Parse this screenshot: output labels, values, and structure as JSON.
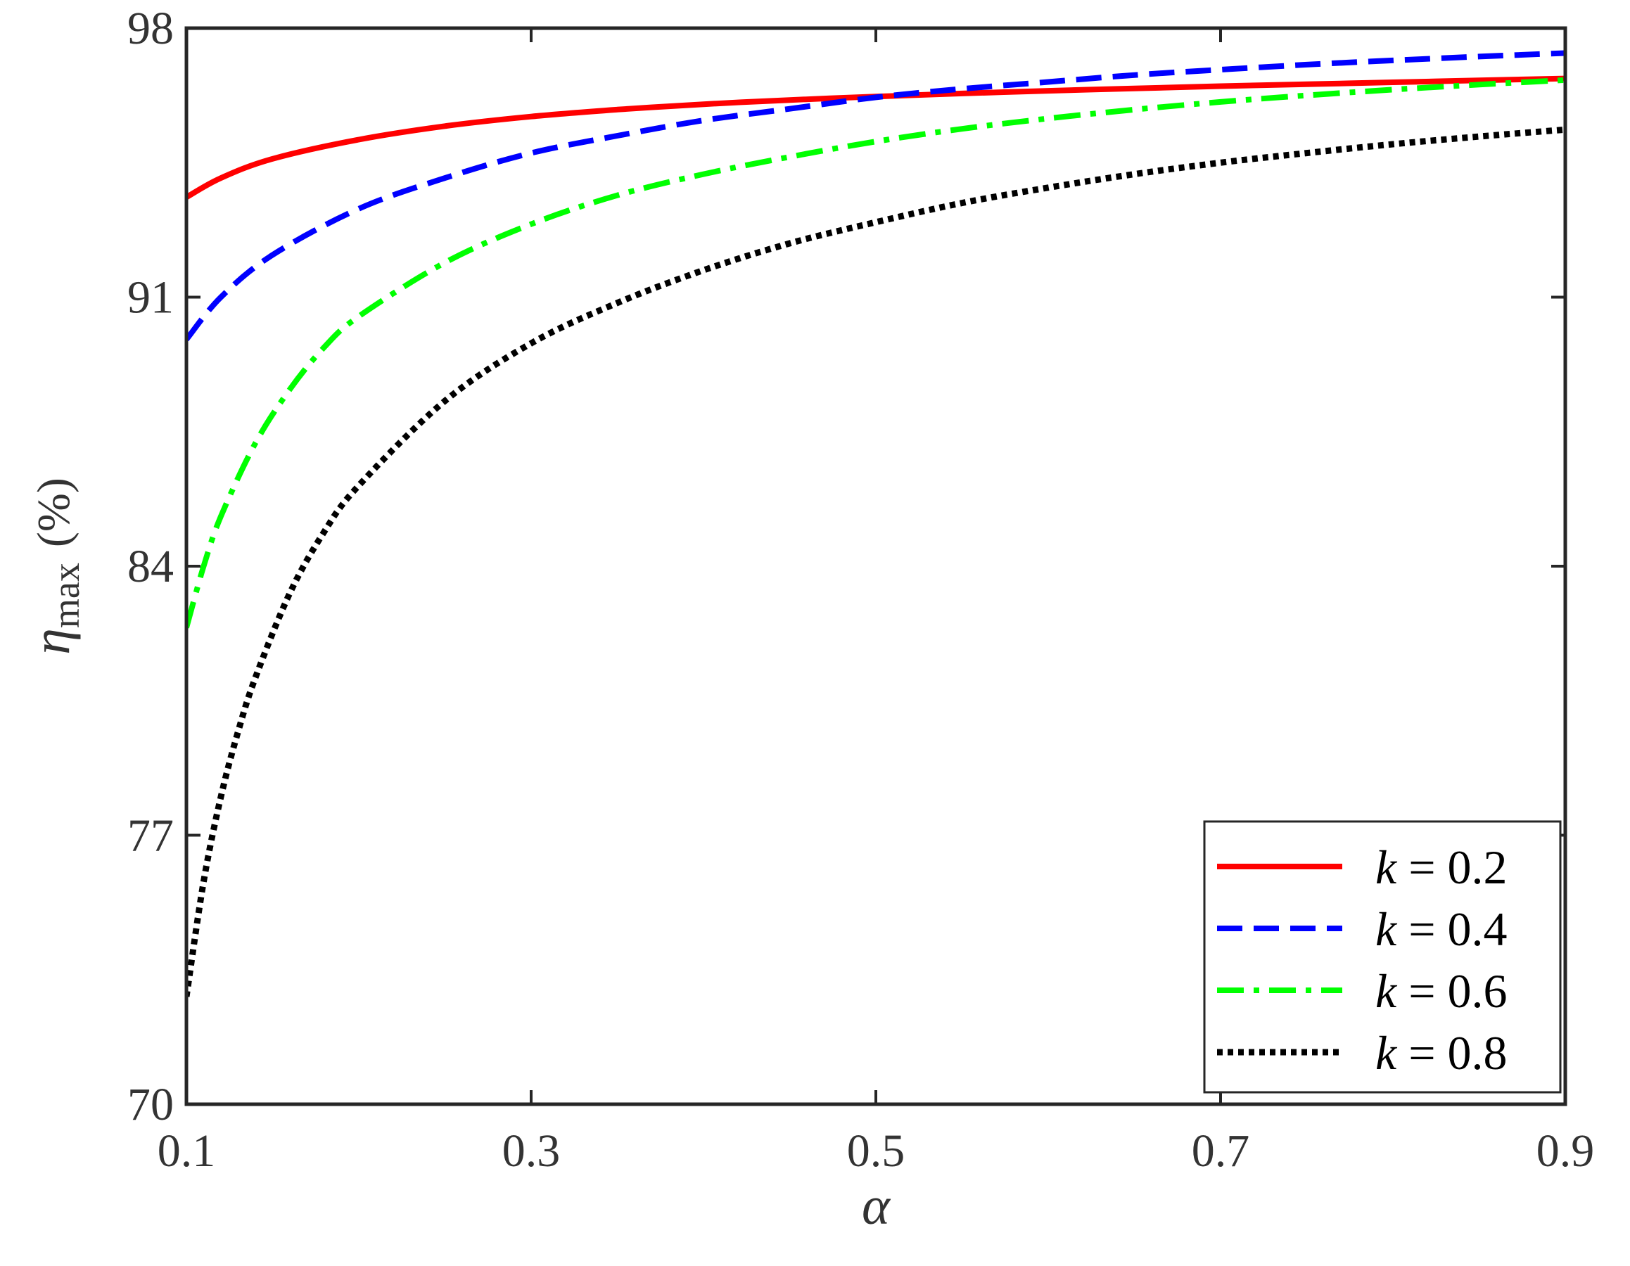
{
  "chart_data": {
    "type": "line",
    "title": "",
    "xlabel": "α",
    "ylabel": {
      "symbol": "η",
      "subscript": "max",
      "unit": "(%)"
    },
    "xlim": [
      0.1,
      0.9
    ],
    "ylim": [
      70,
      98
    ],
    "xticks": [
      0.1,
      0.3,
      0.5,
      0.7,
      0.9
    ],
    "xtick_labels": [
      "0.1",
      "0.3",
      "0.5",
      "0.7",
      "0.9"
    ],
    "yticks": [
      70,
      77,
      84,
      91,
      98
    ],
    "ytick_labels": [
      "70",
      "77",
      "84",
      "91",
      "98"
    ],
    "grid": false,
    "legend_position": "bottom-right",
    "series": [
      {
        "name": "k = 0.2",
        "legend_var": "k",
        "legend_value": "0.2",
        "color": "#ff0000",
        "style": "solid",
        "x": [
          0.1,
          0.12,
          0.15,
          0.2,
          0.25,
          0.3,
          0.35,
          0.4,
          0.45,
          0.5,
          0.55,
          0.6,
          0.65,
          0.7,
          0.75,
          0.8,
          0.85,
          0.9
        ],
        "y": [
          93.6,
          94.1,
          94.6,
          95.1,
          95.45,
          95.7,
          95.88,
          96.02,
          96.13,
          96.22,
          96.3,
          96.37,
          96.43,
          96.49,
          96.54,
          96.59,
          96.64,
          96.69
        ]
      },
      {
        "name": "k = 0.4",
        "legend_var": "k",
        "legend_value": "0.4",
        "color": "#0000ff",
        "style": "dashed",
        "x": [
          0.1,
          0.12,
          0.15,
          0.2,
          0.25,
          0.3,
          0.35,
          0.4,
          0.45,
          0.5,
          0.55,
          0.6,
          0.65,
          0.7,
          0.75,
          0.8,
          0.85,
          0.9
        ],
        "y": [
          89.9,
          91.0,
          92.1,
          93.3,
          94.1,
          94.75,
          95.2,
          95.6,
          95.9,
          96.2,
          96.42,
          96.6,
          96.78,
          96.92,
          97.05,
          97.16,
          97.26,
          97.35
        ]
      },
      {
        "name": "k = 0.6",
        "legend_var": "k",
        "legend_value": "0.6",
        "color": "#00ff00",
        "style": "dashdot",
        "x": [
          0.1,
          0.11,
          0.12,
          0.14,
          0.16,
          0.18,
          0.2,
          0.25,
          0.3,
          0.35,
          0.4,
          0.45,
          0.5,
          0.55,
          0.6,
          0.65,
          0.7,
          0.75,
          0.8,
          0.85,
          0.9
        ],
        "y": [
          82.4,
          84.0,
          85.3,
          87.2,
          88.6,
          89.7,
          90.5,
          91.9,
          92.9,
          93.65,
          94.2,
          94.65,
          95.05,
          95.38,
          95.65,
          95.88,
          96.08,
          96.25,
          96.4,
          96.53,
          96.65
        ]
      },
      {
        "name": "k = 0.8",
        "legend_var": "k",
        "legend_value": "0.8",
        "color": "#000000",
        "style": "dotted",
        "x": [
          0.1,
          0.11,
          0.12,
          0.13,
          0.14,
          0.16,
          0.18,
          0.2,
          0.25,
          0.3,
          0.35,
          0.4,
          0.45,
          0.5,
          0.55,
          0.6,
          0.65,
          0.7,
          0.75,
          0.8,
          0.85,
          0.9
        ],
        "y": [
          72.8,
          75.8,
          78.0,
          79.7,
          81.1,
          83.3,
          84.9,
          86.1,
          88.3,
          89.8,
          90.85,
          91.7,
          92.4,
          92.95,
          93.45,
          93.85,
          94.2,
          94.5,
          94.75,
          94.98,
          95.18,
          95.36
        ]
      }
    ]
  }
}
